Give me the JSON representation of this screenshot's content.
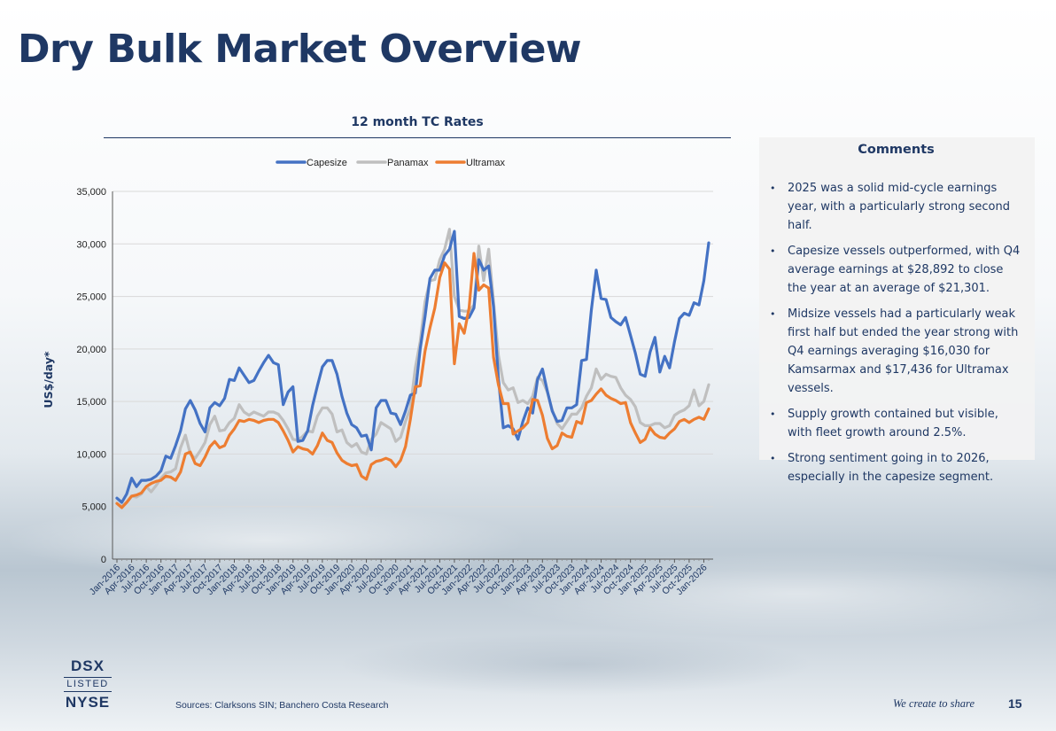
{
  "page": {
    "title": "Dry Bulk Market Overview",
    "page_number": "15",
    "tagline": "We create to share",
    "sources": "Sources: Clarksons SIN; Banchero Costa Research",
    "logo": {
      "line1": "DSX",
      "line2": "LISTED",
      "line3": "NYSE"
    }
  },
  "comments": {
    "title": "Comments",
    "items": [
      "2025 was a solid mid-cycle earnings year, with a particularly strong second half.",
      "Capesize vessels outperformed, with Q4 average earnings at $28,892 to close the year at an average of $21,301.",
      "Midsize vessels had a particularly weak first half but ended the year strong with Q4 earnings averaging $16,030 for Kamsarmax and $17,436 for Ultramax vessels.",
      "Supply growth contained but visible, with fleet growth around 2.5%.",
      "Strong sentiment going in to 2026, especially in the capesize segment."
    ]
  },
  "chart_data": {
    "type": "line",
    "title": "12 month TC Rates",
    "xlabel": "",
    "ylabel": "US$/day*",
    "ylim": [
      0,
      35000
    ],
    "yticks": [
      0,
      5000,
      10000,
      15000,
      20000,
      25000,
      30000,
      35000
    ],
    "ytick_labels": [
      "0",
      "5,000",
      "10,000",
      "15,000",
      "20,000",
      "25,000",
      "30,000",
      "35,000"
    ],
    "x_tick_labels": [
      "Jan-2016",
      "Apr-2016",
      "Jul-2016",
      "Oct-2016",
      "Jan-2017",
      "Apr-2017",
      "Jul-2017",
      "Oct-2017",
      "Jan-2018",
      "Apr-2018",
      "Jul-2018",
      "Oct-2018",
      "Jan-2019",
      "Apr-2019",
      "Jul-2019",
      "Oct-2019",
      "Jan-2020",
      "Apr-2020",
      "Jul-2020",
      "Oct-2020",
      "Jan-2021",
      "Apr-2021",
      "Jul-2021",
      "Oct-2021",
      "Jan-2022",
      "Apr-2022",
      "Jul-2022",
      "Oct-2022",
      "Jan-2023",
      "Apr-2023",
      "Jul-2023",
      "Oct-2023",
      "Jan-2024",
      "Apr-2024",
      "Jul-2024",
      "Oct-2024",
      "Jan-2025",
      "Apr-2025",
      "Jul-2025",
      "Oct-2025",
      "Jan-2026"
    ],
    "grid": "horizontal",
    "legend_position": "top-center",
    "series": [
      {
        "name": "Capesize",
        "color": "#4472c4",
        "values": [
          5800,
          5400,
          6200,
          7700,
          6900,
          7500,
          7500,
          7600,
          7900,
          8400,
          9800,
          9600,
          10800,
          12200,
          14300,
          15100,
          14200,
          12900,
          12100,
          14400,
          14900,
          14600,
          15300,
          17100,
          17000,
          18200,
          17500,
          16800,
          17000,
          17900,
          18700,
          19400,
          18700,
          18500,
          14700,
          15900,
          16400,
          11200,
          11300,
          12200,
          14600,
          16500,
          18300,
          18900,
          18900,
          17600,
          15500,
          13900,
          12800,
          12500,
          11700,
          11800,
          10400,
          14400,
          15100,
          15100,
          13900,
          13800,
          12800,
          14100,
          15600,
          15800,
          20000,
          23100,
          26700,
          27500,
          27500,
          28900,
          29500,
          31200,
          23100,
          22900,
          23000,
          23900,
          28500,
          27500,
          27900,
          24000,
          17200,
          12500,
          12700,
          12400,
          11400,
          13100,
          14400,
          13900,
          17100,
          18100,
          16000,
          14100,
          13100,
          13200,
          14400,
          14400,
          14700,
          18900,
          19000,
          23700,
          27500,
          24800,
          24700,
          23000,
          22600,
          22300,
          23000,
          21300,
          19600,
          17600,
          17400,
          19700,
          21100,
          17800,
          19300,
          18200,
          20700,
          22900,
          23400,
          23200,
          24400,
          24200,
          26500,
          30100
        ]
      },
      {
        "name": "Panamax",
        "color": "#bfbfbf",
        "values": [
          5300,
          5000,
          5400,
          6000,
          5900,
          6200,
          6900,
          6400,
          7000,
          7700,
          8200,
          8300,
          8600,
          10600,
          11800,
          10000,
          9600,
          10300,
          11100,
          12800,
          13600,
          12200,
          12300,
          13000,
          13400,
          14700,
          14000,
          13700,
          14000,
          13800,
          13600,
          14000,
          14000,
          13800,
          13200,
          12400,
          11400,
          11300,
          11700,
          12200,
          12100,
          13600,
          14400,
          14400,
          13800,
          12100,
          12300,
          11100,
          10700,
          11000,
          10200,
          10000,
          11400,
          11900,
          13000,
          12700,
          12400,
          11200,
          11600,
          13100,
          14400,
          18200,
          20700,
          24500,
          26500,
          26600,
          28500,
          29500,
          31400,
          25000,
          23700,
          23600,
          23600,
          24200,
          29800,
          26500,
          29500,
          24500,
          19400,
          16800,
          16100,
          16300,
          14900,
          15100,
          14800,
          15500,
          17300,
          17000,
          15900,
          14200,
          12900,
          12400,
          13100,
          13800,
          13800,
          14400,
          15500,
          16300,
          18100,
          17100,
          17600,
          17400,
          17300,
          16300,
          15600,
          15200,
          14500,
          13000,
          12700,
          12700,
          12900,
          12900,
          12500,
          12700,
          13700,
          14000,
          14200,
          14600,
          16100,
          14600,
          15000,
          16600
        ]
      },
      {
        "name": "Ultramax",
        "color": "#ed7d31",
        "values": [
          5300,
          4900,
          5400,
          6000,
          6100,
          6300,
          6900,
          7200,
          7400,
          7500,
          7900,
          7800,
          7500,
          8300,
          10000,
          10200,
          9100,
          8900,
          9700,
          10700,
          11200,
          10600,
          10800,
          11800,
          12400,
          13200,
          13100,
          13300,
          13200,
          13000,
          13200,
          13300,
          13300,
          13000,
          12200,
          11300,
          10200,
          10700,
          10500,
          10400,
          10000,
          10800,
          12000,
          11300,
          11100,
          10100,
          9400,
          9100,
          8900,
          9000,
          7900,
          7600,
          9000,
          9300,
          9400,
          9600,
          9400,
          8800,
          9400,
          10700,
          13300,
          16400,
          16500,
          19800,
          22000,
          23900,
          26800,
          28200,
          27600,
          18600,
          22400,
          21500,
          23900,
          29100,
          25600,
          26100,
          25800,
          19200,
          16600,
          14800,
          14800,
          11900,
          12200,
          12500,
          13000,
          15200,
          15100,
          13700,
          11500,
          10500,
          10800,
          12000,
          11700,
          11600,
          13100,
          12900,
          14900,
          15100,
          15700,
          16200,
          15600,
          15300,
          15100,
          14800,
          14900,
          13000,
          12000,
          11100,
          11400,
          12500,
          11900,
          11600,
          11500,
          12000,
          12400,
          13100,
          13300,
          13000,
          13300,
          13500,
          13300,
          14300
        ]
      }
    ]
  }
}
